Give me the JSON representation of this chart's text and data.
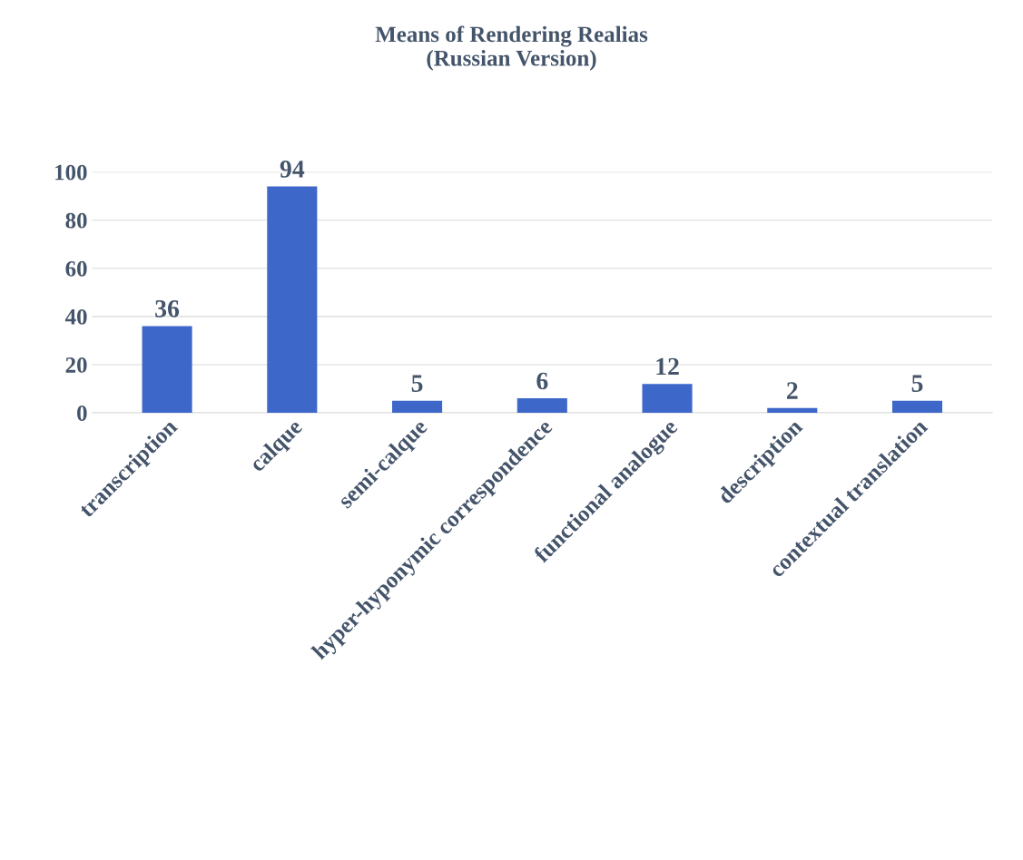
{
  "chart_data": {
    "type": "bar",
    "title": "Means of Rendering Realias\n(Russian Version)",
    "categories": [
      "transcription",
      "calque",
      "semi-calque",
      "hyper-hyponymic correspondence",
      "functional analogue",
      "description",
      "contextual translation"
    ],
    "values": [
      36,
      94,
      5,
      6,
      12,
      2,
      5
    ],
    "color": "#3d67c9",
    "ylim": [
      0,
      100
    ],
    "yticks": [
      0,
      20,
      40,
      60,
      80,
      100
    ],
    "grid": "y",
    "data_labels": true,
    "legend": false
  }
}
